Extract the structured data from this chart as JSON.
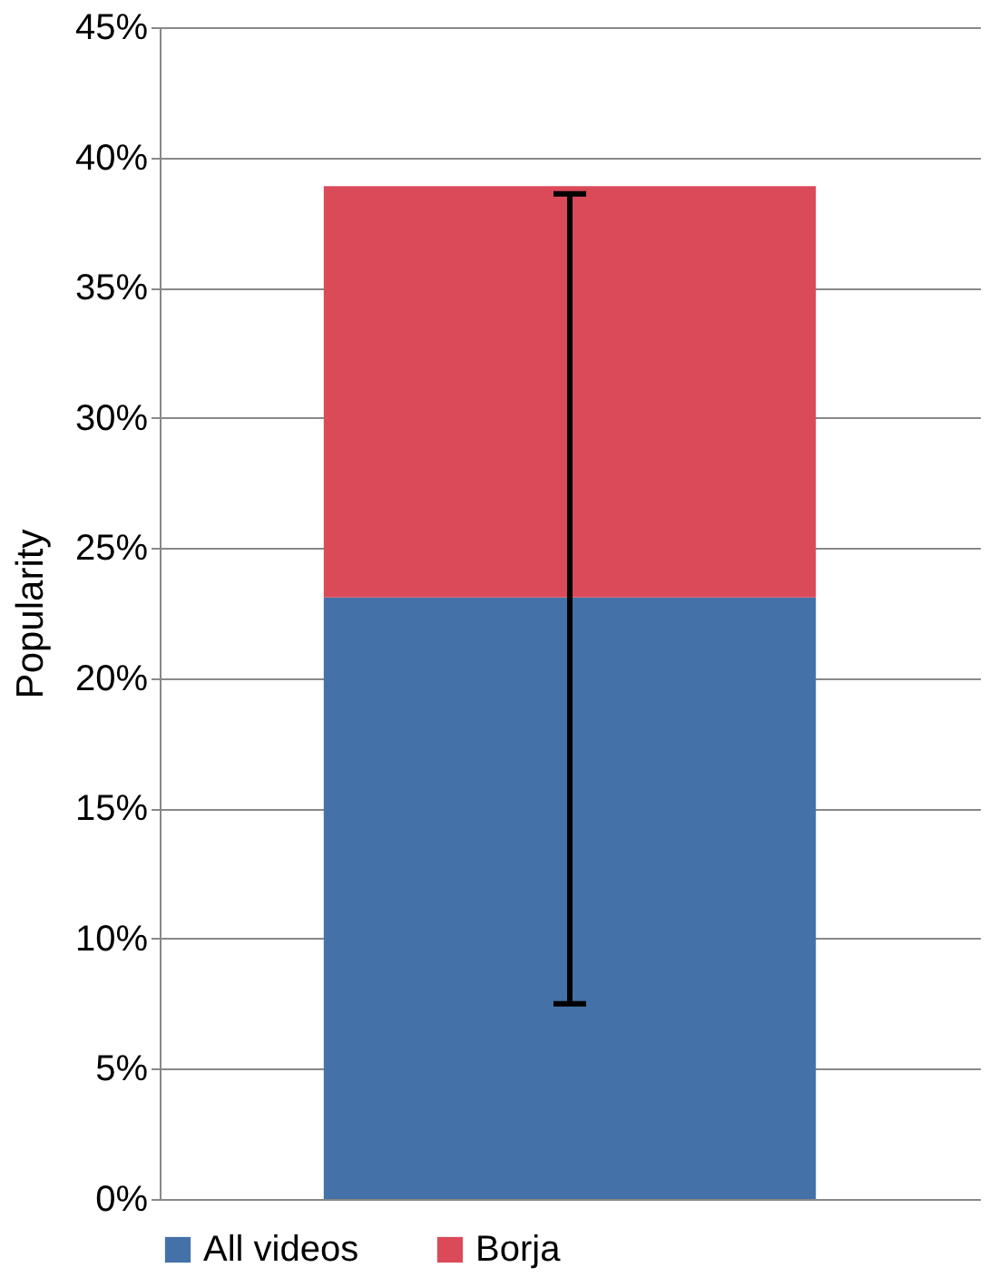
{
  "chart_data": {
    "type": "bar",
    "stacked": true,
    "ylabel": "Popularity",
    "categories": [
      null
    ],
    "series": [
      {
        "name": "All videos",
        "color": "#4472a8",
        "values": [
          23.1
        ],
        "errors": [
          [
            7.5,
            38.6
          ]
        ]
      },
      {
        "name": "Borja",
        "color": "#db4a59",
        "values": [
          15.8
        ]
      }
    ],
    "ylim": [
      0,
      45
    ],
    "yticks": [
      {
        "value": 0,
        "label": "0%"
      },
      {
        "value": 5,
        "label": "5%"
      },
      {
        "value": 10,
        "label": "10%"
      },
      {
        "value": 15,
        "label": "15%"
      },
      {
        "value": 20,
        "label": "20%"
      },
      {
        "value": 25,
        "label": "25%"
      },
      {
        "value": 30,
        "label": "30%"
      },
      {
        "value": 35,
        "label": "35%"
      },
      {
        "value": 40,
        "label": "40%"
      },
      {
        "value": 45,
        "label": "45%"
      }
    ],
    "grid": "y",
    "legend": "bottom",
    "tick_labels": "y"
  }
}
